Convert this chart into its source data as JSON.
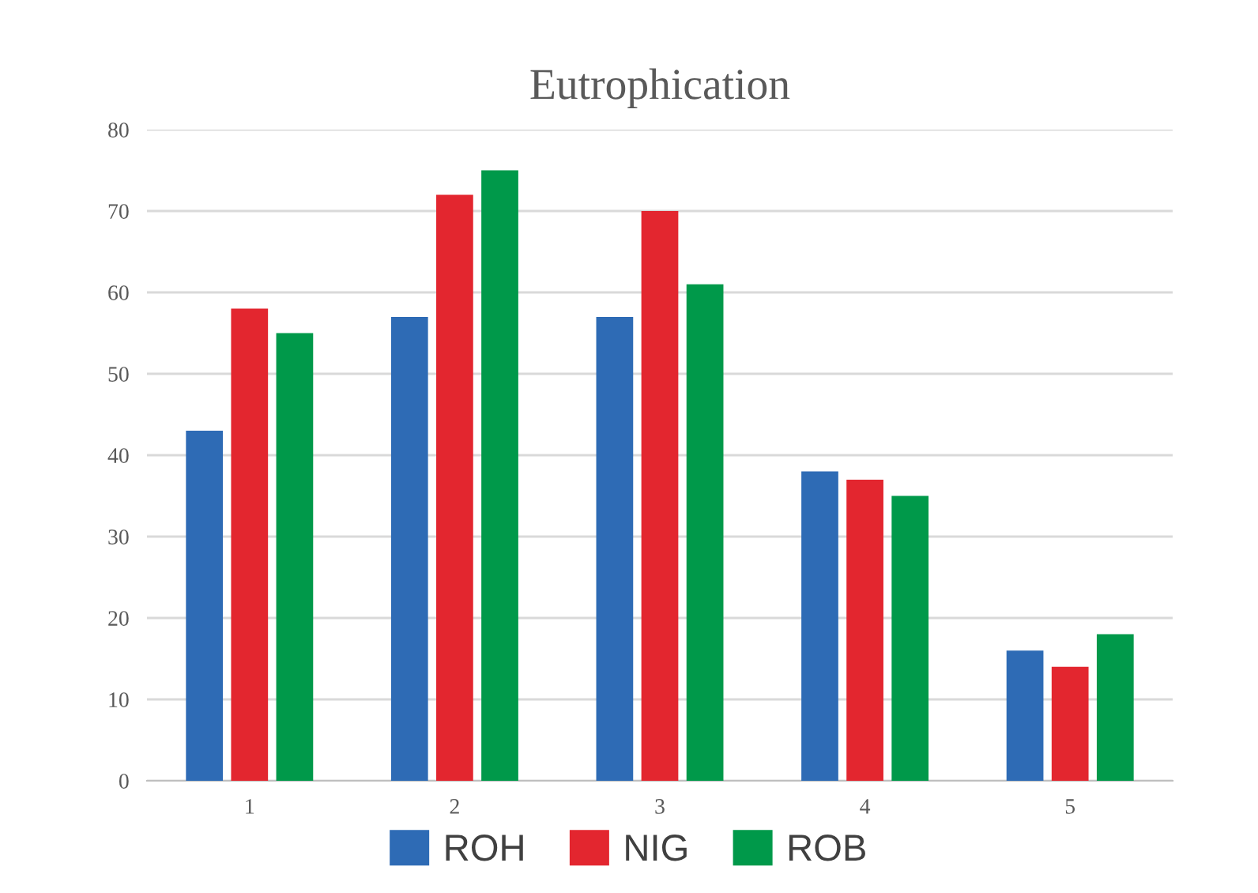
{
  "chart_data": {
    "type": "bar",
    "title": "Eutrophication",
    "categories": [
      "1",
      "2",
      "3",
      "4",
      "5"
    ],
    "series": [
      {
        "name": "ROH",
        "color": "#2e6bb5",
        "values": [
          43,
          57,
          57,
          38,
          16
        ]
      },
      {
        "name": "NIG",
        "color": "#e3262f",
        "values": [
          58,
          72,
          70,
          37,
          14
        ]
      },
      {
        "name": "ROB",
        "color": "#00994a",
        "values": [
          55,
          75,
          61,
          35,
          18
        ]
      }
    ],
    "ylim": [
      0,
      80
    ],
    "yticks": [
      0,
      10,
      20,
      30,
      40,
      50,
      60,
      70,
      80
    ],
    "grid": "y",
    "legend": "bottom"
  }
}
